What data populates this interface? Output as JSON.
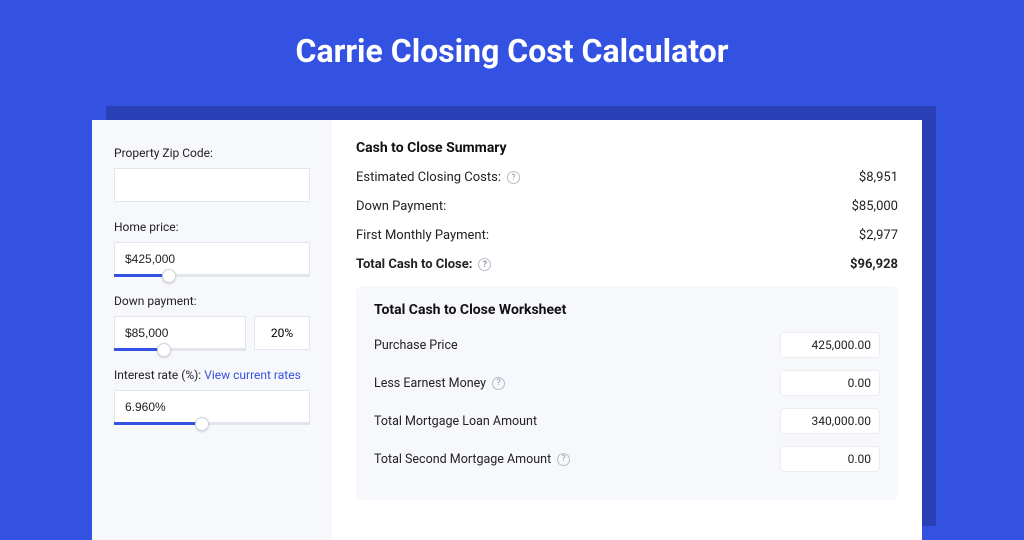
{
  "colors": {
    "page_bg": "#3452e1",
    "shadow_bg": "#2a3fb5",
    "card_bg": "#ffffff",
    "panel_bg": "#f7f8fc",
    "border": "#e3e5ec",
    "link": "#3452e1",
    "text": "#222222",
    "muted": "#9097a8"
  },
  "typography": {
    "title_fontsize": 32,
    "title_weight": 700,
    "label_fontsize": 12,
    "body_fontsize": 13
  },
  "title": "Carrie Closing Cost Calculator",
  "left": {
    "zip": {
      "label": "Property Zip Code:",
      "value": ""
    },
    "price": {
      "label": "Home price:",
      "value": "$425,000",
      "slider_fill_pct": 28
    },
    "down": {
      "label": "Down payment:",
      "value": "$85,000",
      "pct": "20%",
      "slider_fill_pct": 38
    },
    "rate": {
      "label": "Interest rate (%):",
      "link": "View current rates",
      "value": "6.960%",
      "slider_fill_pct": 45
    }
  },
  "summary": {
    "title": "Cash to Close Summary",
    "rows": [
      {
        "label": "Estimated Closing Costs:",
        "help": true,
        "value": "$8,951",
        "bold": false
      },
      {
        "label": "Down Payment:",
        "help": false,
        "value": "$85,000",
        "bold": false
      },
      {
        "label": "First Monthly Payment:",
        "help": false,
        "value": "$2,977",
        "bold": false
      },
      {
        "label": "Total Cash to Close:",
        "help": true,
        "value": "$96,928",
        "bold": true
      }
    ]
  },
  "worksheet": {
    "title": "Total Cash to Close Worksheet",
    "rows": [
      {
        "label": "Purchase Price",
        "help": false,
        "value": "425,000.00"
      },
      {
        "label": "Less Earnest Money",
        "help": true,
        "value": "0.00"
      },
      {
        "label": "Total Mortgage Loan Amount",
        "help": false,
        "value": "340,000.00"
      },
      {
        "label": "Total Second Mortgage Amount",
        "help": true,
        "value": "0.00"
      }
    ]
  }
}
